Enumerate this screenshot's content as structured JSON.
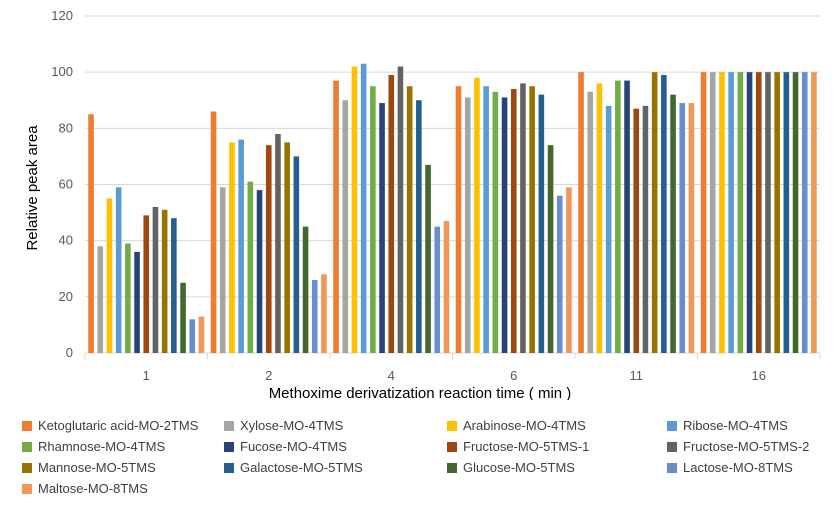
{
  "chart_data": {
    "type": "bar",
    "title": "",
    "xlabel": "Methoxime derivatization reaction time ( min )",
    "ylabel": "Relative peak area",
    "ylim": [
      0,
      120
    ],
    "yticks": [
      0,
      20,
      40,
      60,
      80,
      100,
      120
    ],
    "grid": true,
    "legend_position": "bottom",
    "categories": [
      "1",
      "2",
      "4",
      "6",
      "11",
      "16"
    ],
    "series": [
      {
        "name": "Ketoglutaric acid-MO-2TMS",
        "color": "#ed7d31",
        "values": [
          85,
          86,
          97,
          95,
          100,
          100
        ]
      },
      {
        "name": "Xylose-MO-4TMS",
        "color": "#a5a5a5",
        "values": [
          38,
          59,
          90,
          91,
          93,
          100
        ]
      },
      {
        "name": "Arabinose-MO-4TMS",
        "color": "#ffc000",
        "values": [
          55,
          75,
          102,
          98,
          96,
          100
        ]
      },
      {
        "name": "Ribose-MO-4TMS",
        "color": "#5b9bd5",
        "values": [
          59,
          76,
          103,
          95,
          88,
          100
        ]
      },
      {
        "name": "Rhamnose-MO-4TMS",
        "color": "#70ad47",
        "values": [
          39,
          61,
          95,
          93,
          97,
          100
        ]
      },
      {
        "name": "Fucose-MO-4TMS",
        "color": "#264478",
        "values": [
          36,
          58,
          89,
          91,
          97,
          100
        ]
      },
      {
        "name": "Fructose-MO-5TMS-1",
        "color": "#9e480e",
        "values": [
          49,
          74,
          99,
          94,
          87,
          100
        ]
      },
      {
        "name": "Fructose-MO-5TMS-2",
        "color": "#636363",
        "values": [
          52,
          78,
          102,
          96,
          88,
          100
        ]
      },
      {
        "name": "Mannose-MO-5TMS",
        "color": "#997300",
        "values": [
          51,
          75,
          95,
          95,
          100,
          100
        ]
      },
      {
        "name": "Galactose-MO-5TMS",
        "color": "#255e91",
        "values": [
          48,
          70,
          90,
          92,
          99,
          100
        ]
      },
      {
        "name": "Glucose-MO-5TMS",
        "color": "#43682b",
        "values": [
          25,
          45,
          67,
          74,
          92,
          100
        ]
      },
      {
        "name": "Lactose-MO-8TMS",
        "color": "#698ed0",
        "values": [
          12,
          26,
          45,
          56,
          89,
          100
        ]
      },
      {
        "name": "Maltose-MO-8TMS",
        "color": "#f1975a",
        "values": [
          13,
          28,
          47,
          59,
          89,
          100
        ]
      }
    ]
  }
}
